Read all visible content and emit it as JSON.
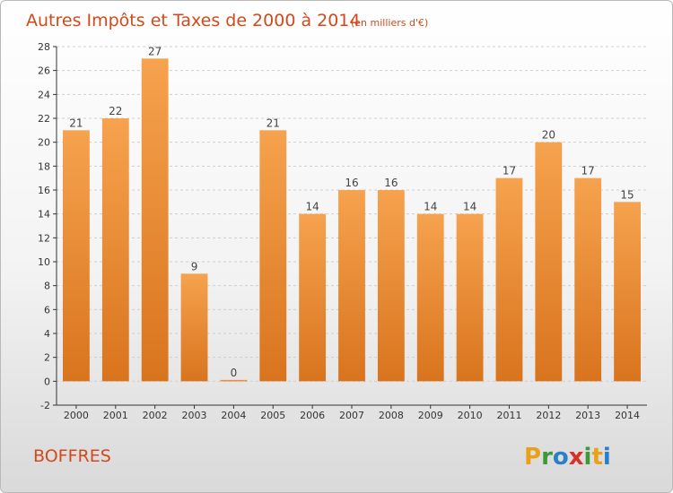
{
  "chart_data": {
    "type": "bar",
    "title": "Autres Impôts et Taxes de 2000 à 2014",
    "subtitle": "(en milliers d'€)",
    "categories": [
      "2000",
      "2001",
      "2002",
      "2003",
      "2004",
      "2005",
      "2006",
      "2007",
      "2008",
      "2009",
      "2010",
      "2011",
      "2012",
      "2013",
      "2014"
    ],
    "values": [
      21,
      22,
      27,
      9,
      0,
      21,
      14,
      16,
      16,
      14,
      14,
      17,
      20,
      17,
      15
    ],
    "ylim": [
      -2,
      28
    ],
    "yticks": [
      -2,
      0,
      2,
      4,
      6,
      8,
      10,
      12,
      14,
      16,
      18,
      20,
      22,
      24,
      26,
      28
    ],
    "grid": "horizontal-dashed",
    "legend": "none",
    "colors": {
      "bar_light": "#f6a24e",
      "bar_dark": "#d9741e",
      "axis": "#333333",
      "title": "#d24a1b"
    }
  },
  "commune": "BOFFRES",
  "logo": {
    "letters": [
      "P",
      "r",
      "o",
      "x",
      "i",
      "t",
      "i"
    ],
    "colors": [
      "#e8a21a",
      "#3a9a3a",
      "#2a7fc8",
      "#d9302a",
      "#3a9a3a",
      "#e8a21a",
      "#2a7fc8"
    ]
  }
}
